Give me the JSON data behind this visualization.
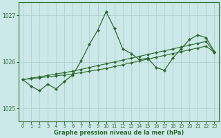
{
  "title": "Graphe pression niveau de la mer (hPa)",
  "bg_color": "#cce8e8",
  "grid_color": "#aacccc",
  "line_color": "#2d6b2d",
  "marker_color": "#2d6b2d",
  "xlim": [
    -0.5,
    23.5
  ],
  "ylim": [
    1024.72,
    1027.28
  ],
  "yticks": [
    1025,
    1026,
    1027
  ],
  "xticks": [
    0,
    1,
    2,
    3,
    4,
    5,
    6,
    7,
    8,
    9,
    10,
    11,
    12,
    13,
    14,
    15,
    16,
    17,
    18,
    19,
    20,
    21,
    22,
    23
  ],
  "series_main": [
    1025.62,
    1025.48,
    1025.38,
    1025.52,
    1025.42,
    1025.58,
    1025.72,
    1026.02,
    1026.38,
    1026.68,
    1027.08,
    1026.72,
    1026.28,
    1026.18,
    1026.05,
    1026.08,
    1025.88,
    1025.82,
    1026.08,
    1026.28,
    1026.48,
    1026.58,
    1026.52,
    1026.22
  ],
  "series_line1": [
    1025.62,
    1025.65,
    1025.68,
    1025.71,
    1025.74,
    1025.77,
    1025.8,
    1025.84,
    1025.88,
    1025.92,
    1025.96,
    1026.0,
    1026.04,
    1026.08,
    1026.12,
    1026.16,
    1026.2,
    1026.24,
    1026.28,
    1026.32,
    1026.36,
    1026.4,
    1026.44,
    1026.2
  ],
  "series_line2": [
    1025.62,
    1025.64,
    1025.66,
    1025.68,
    1025.7,
    1025.72,
    1025.74,
    1025.77,
    1025.8,
    1025.83,
    1025.86,
    1025.9,
    1025.94,
    1025.98,
    1026.02,
    1026.06,
    1026.1,
    1026.14,
    1026.18,
    1026.22,
    1026.26,
    1026.3,
    1026.34,
    1026.2
  ]
}
